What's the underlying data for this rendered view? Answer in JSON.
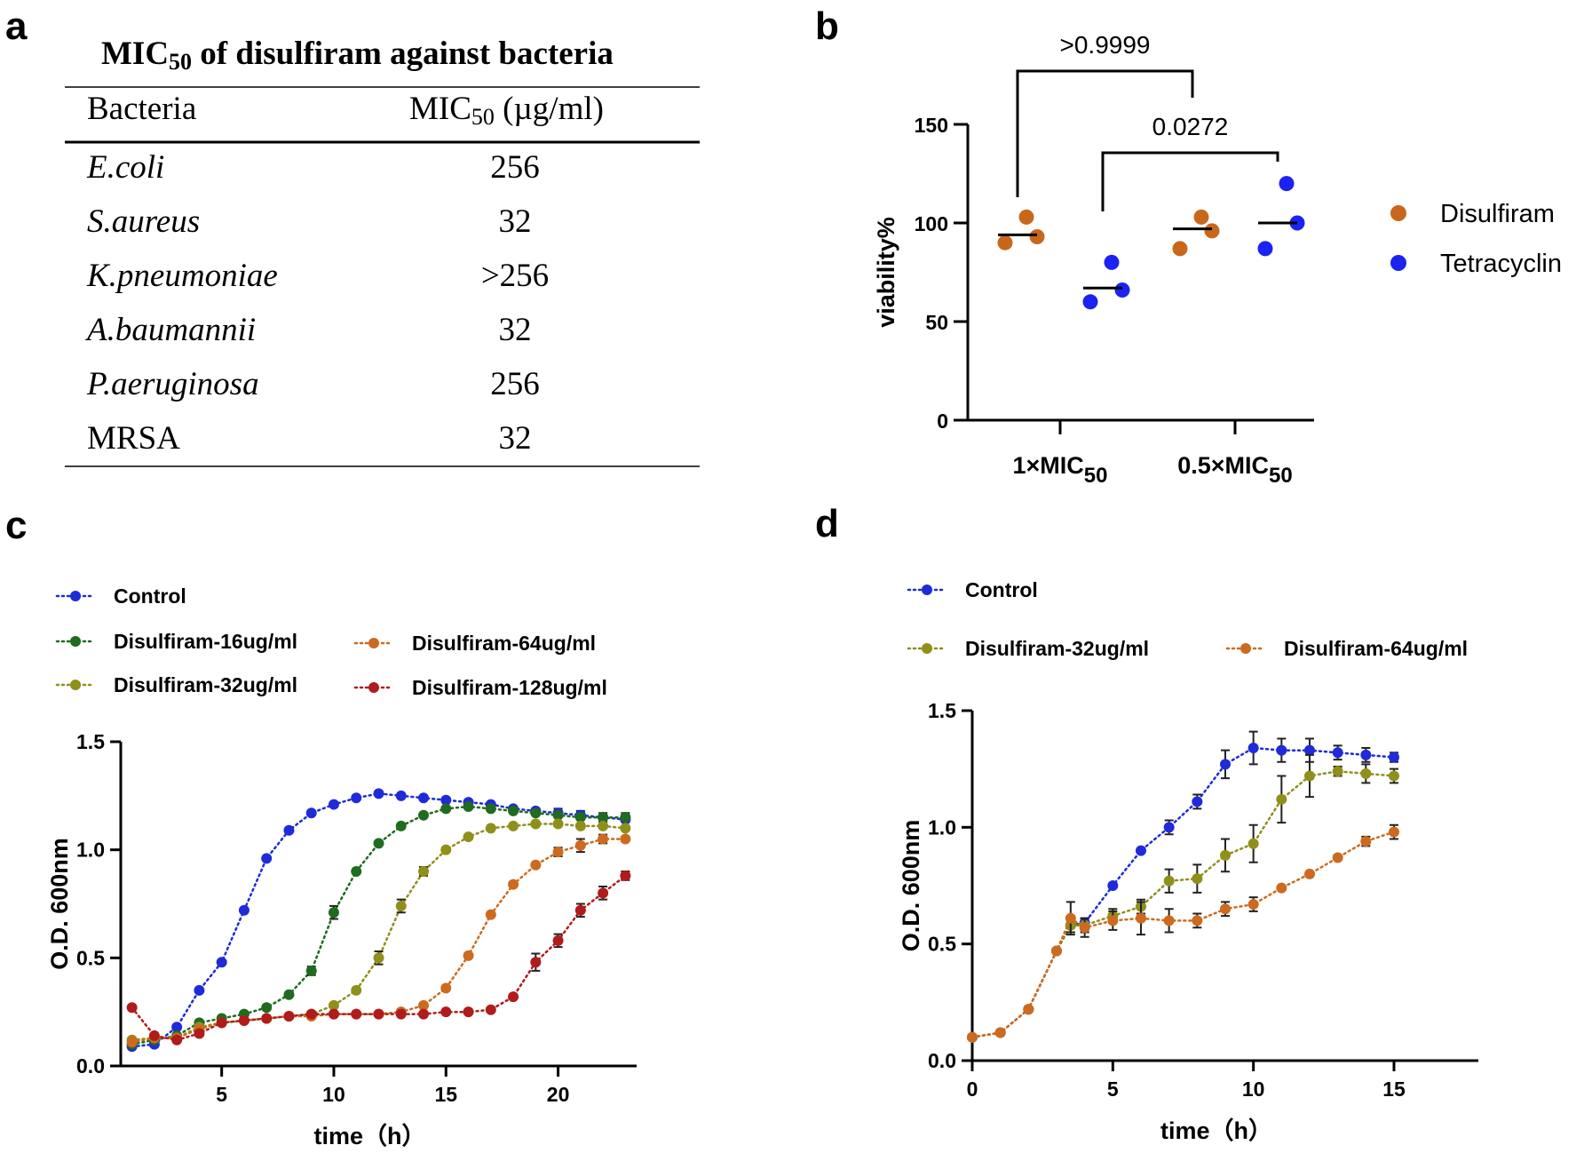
{
  "panel_labels": {
    "a": "a",
    "b": "b",
    "c": "c",
    "d": "d"
  },
  "chart_data": [
    {
      "panel": "a",
      "type": "table",
      "title": "MIC",
      "title_sub": "50",
      "title_rest": " of disulfiram against bacteria",
      "columns": [
        "Bacteria",
        "MIC"
      ],
      "column2_sub": "50",
      "column2_rest": " (µg/ml)",
      "rows": [
        {
          "bacteria": "E.coli",
          "mic": "256",
          "italic": true
        },
        {
          "bacteria": "S.aureus",
          "mic": "32",
          "italic": true
        },
        {
          "bacteria": "K.pneumoniae",
          "mic": ">256",
          "italic": true
        },
        {
          "bacteria": "A.baumannii",
          "mic": "32",
          "italic": true
        },
        {
          "bacteria": "P.aeruginosa",
          "mic": "256",
          "italic": true
        },
        {
          "bacteria": "MRSA",
          "mic": "32",
          "italic": false
        }
      ]
    },
    {
      "panel": "b",
      "type": "scatter",
      "ylabel": "viability%",
      "ylim": [
        0,
        150
      ],
      "yticks": [
        0,
        50,
        100,
        150
      ],
      "groups": [
        {
          "label": "1×MIC",
          "sub": "50"
        },
        {
          "label": "0.5×MIC",
          "sub": "50"
        }
      ],
      "series": [
        {
          "name": "Disulfiram",
          "color": "#c8671c",
          "points": [
            [
              90,
              103,
              93
            ],
            [
              87,
              103,
              96
            ]
          ],
          "means": [
            94,
            97
          ]
        },
        {
          "name": "Tetracyclin",
          "color": "#1a23f0",
          "points": [
            [
              60,
              80,
              66
            ],
            [
              87,
              120,
              100
            ]
          ],
          "means": [
            67,
            100
          ]
        }
      ],
      "comparisons": [
        {
          "label": ">0.9999",
          "from": "1×MIC50 Disulfiram",
          "to": "0.5×MIC50 Disulfiram"
        },
        {
          "label": "0.0272",
          "from": "1×MIC50 Tetracyclin",
          "to": "0.5×MIC50 Tetracyclin"
        }
      ]
    },
    {
      "panel": "c",
      "type": "line",
      "xlabel": "time（h）",
      "ylabel": "O.D. 600nm",
      "xlim": [
        0.5,
        23.5
      ],
      "ylim": [
        0,
        1.5
      ],
      "xticks": [
        5,
        10,
        15,
        20
      ],
      "yticks": [
        "0.0",
        "0.5",
        "1.0",
        "1.5"
      ],
      "x": [
        1,
        2,
        3,
        4,
        5,
        6,
        7,
        8,
        9,
        10,
        11,
        12,
        13,
        14,
        15,
        16,
        17,
        18,
        19,
        20,
        21,
        22,
        23
      ],
      "series": [
        {
          "name": "Control",
          "color": "#1f2bd8",
          "values": [
            0.09,
            0.1,
            0.18,
            0.35,
            0.48,
            0.72,
            0.96,
            1.09,
            1.17,
            1.21,
            1.24,
            1.26,
            1.25,
            1.24,
            1.23,
            1.22,
            1.21,
            1.19,
            1.18,
            1.17,
            1.16,
            1.15,
            1.14
          ],
          "errors": [
            0,
            0,
            0,
            0,
            0,
            0,
            0,
            0,
            0,
            0,
            0,
            0,
            0,
            0,
            0,
            0,
            0,
            0,
            0,
            0.02,
            0.02,
            0.02,
            0.03
          ]
        },
        {
          "name": "Disulfiram-16ug/ml",
          "color": "#1f6b1f",
          "values": [
            0.1,
            0.12,
            0.14,
            0.2,
            0.22,
            0.24,
            0.27,
            0.33,
            0.44,
            0.71,
            0.9,
            1.03,
            1.11,
            1.16,
            1.19,
            1.2,
            1.19,
            1.18,
            1.17,
            1.16,
            1.15,
            1.15,
            1.15
          ],
          "errors": [
            0,
            0,
            0,
            0,
            0,
            0,
            0,
            0,
            0.02,
            0.03,
            0,
            0,
            0,
            0,
            0,
            0,
            0,
            0,
            0,
            0,
            0,
            0,
            0
          ]
        },
        {
          "name": "Disulfiram-32ug/ml",
          "color": "#8f8f1c",
          "values": [
            0.12,
            0.13,
            0.13,
            0.18,
            0.2,
            0.21,
            0.22,
            0.23,
            0.24,
            0.28,
            0.35,
            0.5,
            0.74,
            0.9,
            1.0,
            1.06,
            1.1,
            1.11,
            1.12,
            1.12,
            1.11,
            1.11,
            1.1
          ],
          "errors": [
            0,
            0,
            0,
            0,
            0,
            0,
            0,
            0,
            0,
            0,
            0,
            0.03,
            0.03,
            0.02,
            0,
            0,
            0,
            0,
            0,
            0,
            0,
            0,
            0
          ]
        },
        {
          "name": "Disulfiram-64ug/ml",
          "color": "#cc6a1f",
          "values": [
            0.11,
            0.13,
            0.13,
            0.17,
            0.2,
            0.21,
            0.22,
            0.23,
            0.23,
            0.24,
            0.24,
            0.24,
            0.25,
            0.28,
            0.36,
            0.51,
            0.7,
            0.84,
            0.93,
            0.99,
            1.02,
            1.05,
            1.05
          ],
          "errors": [
            0,
            0,
            0,
            0,
            0,
            0,
            0,
            0,
            0,
            0,
            0,
            0,
            0,
            0,
            0,
            0,
            0,
            0,
            0,
            0.02,
            0.03,
            0.02,
            0
          ]
        },
        {
          "name": "Disulfiram-128ug/ml",
          "color": "#b01b1b",
          "values": [
            0.27,
            0.14,
            0.12,
            0.15,
            0.2,
            0.21,
            0.22,
            0.23,
            0.24,
            0.24,
            0.24,
            0.24,
            0.24,
            0.24,
            0.25,
            0.25,
            0.26,
            0.32,
            0.48,
            0.58,
            0.72,
            0.8,
            0.88
          ],
          "errors": [
            0,
            0,
            0,
            0,
            0,
            0,
            0,
            0,
            0,
            0,
            0,
            0,
            0,
            0,
            0,
            0,
            0,
            0,
            0.04,
            0.03,
            0.03,
            0.03,
            0.02
          ]
        }
      ]
    },
    {
      "panel": "d",
      "type": "line",
      "xlabel": "time（h）",
      "ylabel": "O.D. 600nm",
      "xlim": [
        0,
        18
      ],
      "ylim": [
        0,
        1.5
      ],
      "xticks": [
        0,
        5,
        10,
        15
      ],
      "yticks": [
        "0.0",
        "0.5",
        "1.0",
        "1.5"
      ],
      "x": [
        0,
        1,
        2,
        3,
        3.5,
        4,
        5,
        6,
        7,
        8,
        9,
        10,
        11,
        12,
        13,
        14,
        15
      ],
      "series": [
        {
          "name": "Control",
          "color": "#1f2bd8",
          "values": [
            0.1,
            0.12,
            0.22,
            0.47,
            0.58,
            0.59,
            0.75,
            0.9,
            1.0,
            1.11,
            1.27,
            1.34,
            1.33,
            1.33,
            1.32,
            1.31,
            1.3
          ],
          "errors": [
            0,
            0,
            0,
            0,
            0.03,
            0.02,
            0,
            0,
            0.03,
            0.03,
            0.06,
            0.07,
            0.05,
            0.05,
            0.03,
            0.03,
            0.02
          ]
        },
        {
          "name": "Disulfiram-32ug/ml",
          "color": "#8f8f1c",
          "values": [
            0.1,
            0.12,
            0.22,
            0.47,
            0.58,
            0.58,
            0.62,
            0.66,
            0.77,
            0.78,
            0.88,
            0.93,
            1.12,
            1.22,
            1.24,
            1.23,
            1.22
          ],
          "errors": [
            0,
            0,
            0,
            0,
            0.03,
            0.03,
            0.03,
            0.03,
            0.05,
            0.06,
            0.07,
            0.08,
            0.1,
            0.09,
            0.02,
            0.04,
            0.03
          ]
        },
        {
          "name": "Disulfiram-64ug/ml",
          "color": "#cc6a1f",
          "values": [
            0.1,
            0.12,
            0.22,
            0.47,
            0.61,
            0.57,
            0.6,
            0.61,
            0.6,
            0.6,
            0.65,
            0.67,
            0.74,
            0.8,
            0.87,
            0.94,
            0.98
          ],
          "errors": [
            0,
            0,
            0,
            0,
            0.07,
            0.04,
            0.04,
            0.07,
            0.05,
            0.03,
            0.03,
            0.03,
            0,
            0,
            0,
            0.02,
            0.03
          ]
        }
      ]
    }
  ]
}
